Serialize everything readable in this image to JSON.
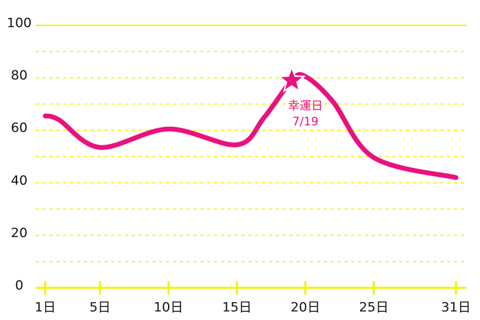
{
  "chart_data": {
    "type": "line",
    "x": [
      1,
      2,
      5,
      10,
      15,
      17,
      19,
      20,
      22,
      25,
      31
    ],
    "values": [
      65.5,
      64,
      53.5,
      60.5,
      54.5,
      65,
      79,
      80.5,
      71,
      49.6,
      42
    ],
    "color": "#e8127f",
    "xlim": [
      1,
      31
    ],
    "xticks": [
      {
        "value": 1,
        "label": "1日"
      },
      {
        "value": 5,
        "label": "5日"
      },
      {
        "value": 10,
        "label": "10日"
      },
      {
        "value": 15,
        "label": "15日"
      },
      {
        "value": 20,
        "label": "20日"
      },
      {
        "value": 25,
        "label": "25日"
      },
      {
        "value": 31,
        "label": "31日"
      }
    ],
    "ylim": [
      0,
      100
    ],
    "yticks": [
      0,
      20,
      40,
      60,
      80,
      100
    ],
    "minor_yticks": [
      10,
      30,
      50,
      70,
      90
    ],
    "grid": true,
    "grid_color": "#f2f200",
    "annotation": {
      "text": "幸運日",
      "date": "7/19",
      "x": 19,
      "y": 79
    }
  }
}
